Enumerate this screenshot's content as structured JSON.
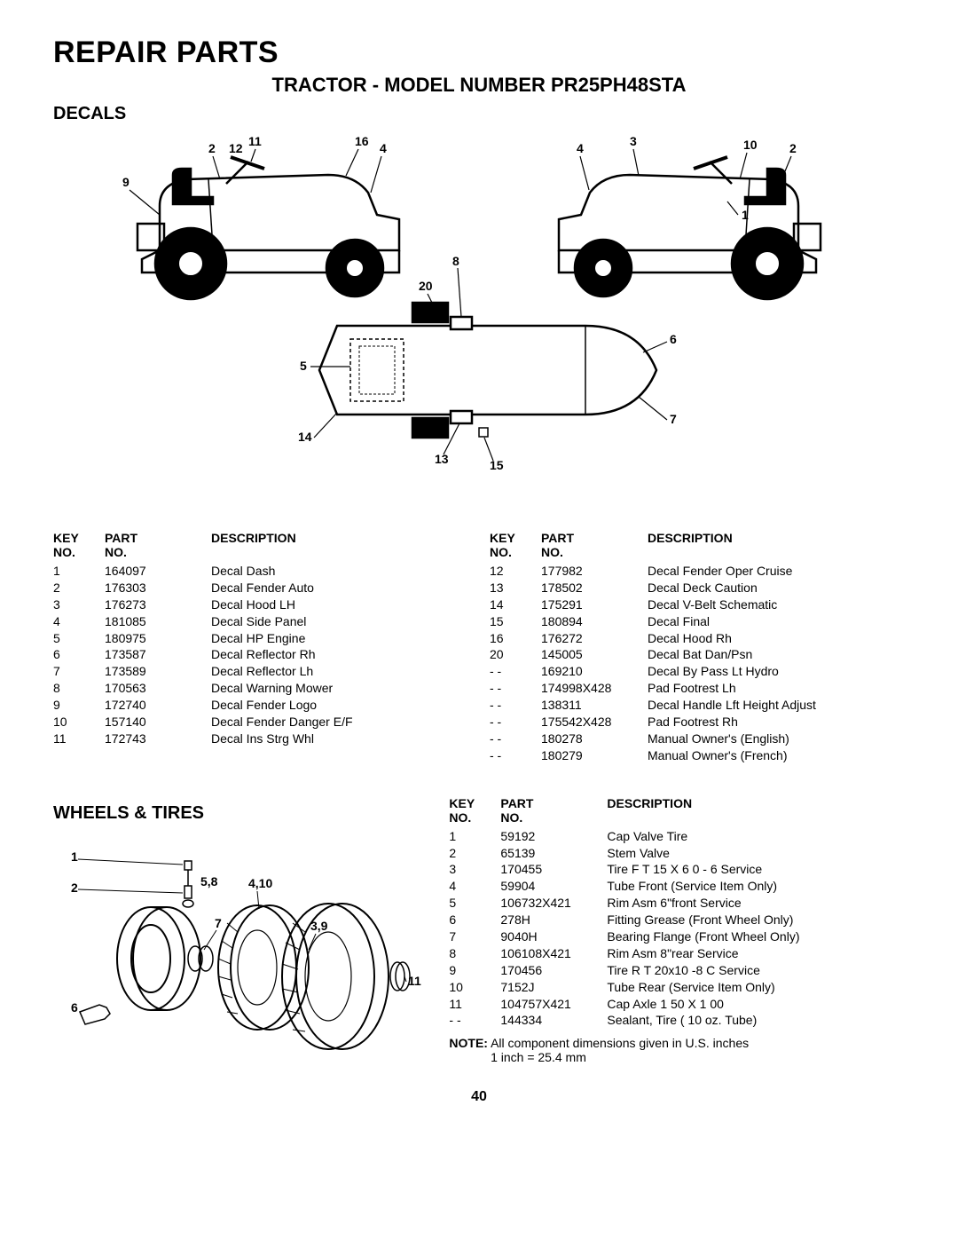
{
  "page": {
    "title": "REPAIR PARTS",
    "model_line": "TRACTOR - MODEL NUMBER PR25PH48STA",
    "page_number": "40"
  },
  "decals": {
    "heading": "DECALS",
    "header_key": "KEY NO.",
    "header_part": "PART NO.",
    "header_desc": "DESCRIPTION",
    "diagram_labels": {
      "left": [
        "2",
        "12",
        "11",
        "16",
        "4",
        "9"
      ],
      "right": [
        "4",
        "3",
        "10",
        "2",
        "1"
      ],
      "mid": [
        "8",
        "20",
        "5",
        "14",
        "13",
        "15",
        "6",
        "7"
      ]
    },
    "left": [
      {
        "key": "1",
        "part": "164097",
        "desc": "Decal Dash"
      },
      {
        "key": "2",
        "part": "176303",
        "desc": "Decal Fender Auto"
      },
      {
        "key": "3",
        "part": "176273",
        "desc": "Decal Hood LH"
      },
      {
        "key": "4",
        "part": "181085",
        "desc": "Decal Side Panel"
      },
      {
        "key": "5",
        "part": "180975",
        "desc": "Decal HP Engine"
      },
      {
        "key": "6",
        "part": "173587",
        "desc": "Decal Reflector Rh"
      },
      {
        "key": "7",
        "part": "173589",
        "desc": "Decal Reflector Lh"
      },
      {
        "key": "8",
        "part": "170563",
        "desc": "Decal Warning Mower"
      },
      {
        "key": "9",
        "part": "172740",
        "desc": "Decal Fender Logo"
      },
      {
        "key": "10",
        "part": "157140",
        "desc": "Decal Fender Danger E/F"
      },
      {
        "key": "11",
        "part": "172743",
        "desc": "Decal Ins Strg Whl"
      }
    ],
    "right": [
      {
        "key": "12",
        "part": "177982",
        "desc": "Decal Fender Oper Cruise"
      },
      {
        "key": "13",
        "part": "178502",
        "desc": "Decal Deck Caution"
      },
      {
        "key": "14",
        "part": "175291",
        "desc": "Decal V-Belt  Schematic"
      },
      {
        "key": "15",
        "part": "180894",
        "desc": "Decal Final"
      },
      {
        "key": "16",
        "part": "176272",
        "desc": "Decal Hood Rh"
      },
      {
        "key": "20",
        "part": "145005",
        "desc": "Decal Bat Dan/Psn"
      },
      {
        "key": "- -",
        "part": "169210",
        "desc": "Decal By Pass Lt Hydro"
      },
      {
        "key": "- -",
        "part": "174998X428",
        "desc": "Pad Footrest Lh"
      },
      {
        "key": "- -",
        "part": "138311",
        "desc": "Decal Handle Lft Height Adjust"
      },
      {
        "key": "- -",
        "part": "175542X428",
        "desc": "Pad Footrest Rh"
      },
      {
        "key": "- -",
        "part": "180278",
        "desc": "Manual Owner's (English)"
      },
      {
        "key": "- -",
        "part": "180279",
        "desc": "Manual Owner's (French)"
      }
    ]
  },
  "wheels": {
    "heading": "WHEELS & TIRES",
    "header_key": "KEY NO.",
    "header_part": "PART NO.",
    "header_desc": "DESCRIPTION",
    "diagram_labels": [
      "1",
      "2",
      "5,8",
      "4,10",
      "7",
      "3,9",
      "6",
      "11"
    ],
    "rows": [
      {
        "key": "1",
        "part": "59192",
        "desc": "Cap Valve Tire"
      },
      {
        "key": "2",
        "part": "65139",
        "desc": "Stem Valve"
      },
      {
        "key": "3",
        "part": "170455",
        "desc": "Tire F T 15 X 6 0 - 6 Service"
      },
      {
        "key": "4",
        "part": "59904",
        "desc": "Tube Front (Service Item Only)"
      },
      {
        "key": "5",
        "part": "106732X421",
        "desc": "Rim Asm 6\"front Service"
      },
      {
        "key": "6",
        "part": "278H",
        "desc": "Fitting Grease (Front Wheel Only)"
      },
      {
        "key": "7",
        "part": "9040H",
        "desc": "Bearing Flange (Front Wheel Only)"
      },
      {
        "key": "8",
        "part": "106108X421",
        "desc": "Rim Asm 8\"rear Service"
      },
      {
        "key": "9",
        "part": "170456",
        "desc": "Tire R T 20x10 -8 C Service"
      },
      {
        "key": "10",
        "part": "7152J",
        "desc": "Tube Rear (Service Item Only)"
      },
      {
        "key": "11",
        "part": "104757X421",
        "desc": "Cap Axle 1 50 X 1 00"
      },
      {
        "key": "- -",
        "part": "144334",
        "desc": "Sealant, Tire ( 10 oz. Tube)"
      }
    ],
    "note_label": "NOTE:",
    "note_text": "All component dimensions given in U.S. inches",
    "note_sub": "1 inch = 25.4 mm"
  },
  "style": {
    "text_color": "#000000",
    "bg_color": "#ffffff",
    "title_fontsize": 34,
    "model_fontsize": 22,
    "heading_fontsize": 20,
    "body_fontsize": 14,
    "line_stroke": "#000000",
    "line_width": 2.5,
    "thin_line_width": 1.2
  }
}
